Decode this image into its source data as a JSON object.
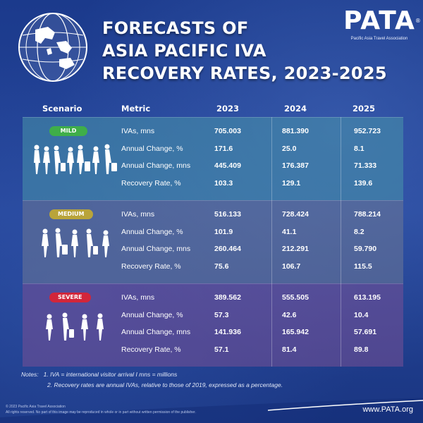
{
  "title": {
    "line1": "FORECASTS OF",
    "line2": "ASIA PACIFIC IVA",
    "line3": "RECOVERY RATES, 2023-2025"
  },
  "logo": {
    "word": "PATA",
    "registered": "®",
    "subtitle": "Pacific Asia Travel Association"
  },
  "table": {
    "headers": {
      "scenario": "Scenario",
      "metric": "Metric",
      "y2023": "2023",
      "y2024": "2024",
      "y2025": "2025"
    },
    "scenarios": [
      {
        "name": "MILD",
        "badge_color": "#3fae49",
        "rows": [
          {
            "metric": "IVAs, mns",
            "v2023": "705.003",
            "v2024": "881.390",
            "v2025": "952.723"
          },
          {
            "metric": "Annual Change, %",
            "v2023": "171.6",
            "v2024": "25.0",
            "v2025": "8.1"
          },
          {
            "metric": "Annual Change, mns",
            "v2023": "445.409",
            "v2024": "176.387",
            "v2025": "71.333"
          },
          {
            "metric": "Recovery Rate, %",
            "v2023": "103.3",
            "v2024": "129.1",
            "v2025": "139.6"
          }
        ]
      },
      {
        "name": "MEDIUM",
        "badge_color": "#b9a43a",
        "rows": [
          {
            "metric": "IVAs, mns",
            "v2023": "516.133",
            "v2024": "728.424",
            "v2025": "788.214"
          },
          {
            "metric": "Annual Change, %",
            "v2023": "101.9",
            "v2024": "41.1",
            "v2025": "8.2"
          },
          {
            "metric": "Annual Change, mns",
            "v2023": "260.464",
            "v2024": "212.291",
            "v2025": "59.790"
          },
          {
            "metric": "Recovery Rate, %",
            "v2023": "75.6",
            "v2024": "106.7",
            "v2025": "115.5"
          }
        ]
      },
      {
        "name": "SEVERE",
        "badge_color": "#d2263a",
        "rows": [
          {
            "metric": "IVAs, mns",
            "v2023": "389.562",
            "v2024": "555.505",
            "v2025": "613.195"
          },
          {
            "metric": "Annual Change, %",
            "v2023": "57.3",
            "v2024": "42.6",
            "v2025": "10.4"
          },
          {
            "metric": "Annual Change, mns",
            "v2023": "141.936",
            "v2024": "165.942",
            "v2025": "57.691"
          },
          {
            "metric": "Recovery Rate, %",
            "v2023": "57.1",
            "v2024": "81.4",
            "v2025": "89.8"
          }
        ]
      }
    ]
  },
  "notes": {
    "label": "Notes:",
    "note1": "1. IVA = international visitor arrival I mns = millions",
    "note2": "2. Recovery rates are annual IVAs, relative to those of 2019, expressed as a percentage."
  },
  "copyright": {
    "line1": "© 2023 Pacific Asia Travel Association",
    "line2": "All rights reserved. No part of this image may be reproduced in whole or in part without written permission of the publisher."
  },
  "website": "www.PATA.org",
  "colors": {
    "background": "#1d3c8f",
    "mild_band": "#4896aa",
    "medium_band": "#6e7896",
    "severe_band": "#785096"
  },
  "icons": {
    "globe": "globe-icon",
    "travelers": "travelers-silhouette-icon"
  }
}
